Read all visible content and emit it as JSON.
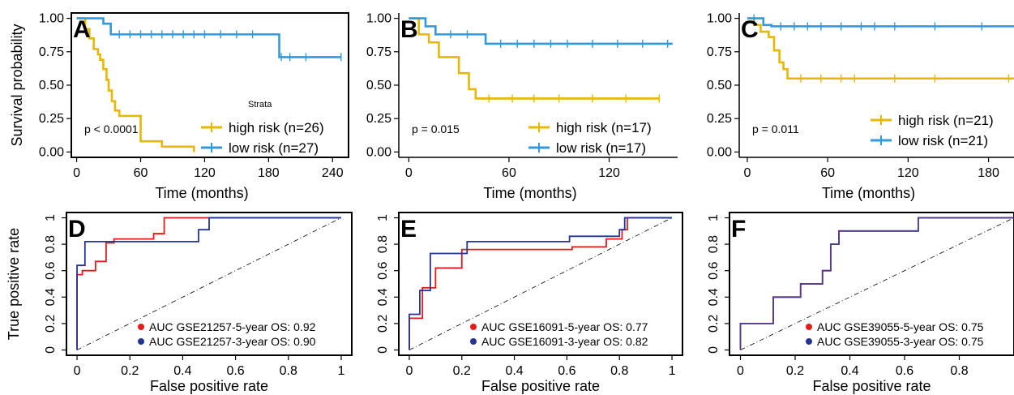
{
  "chart_data": [
    {
      "type": "line",
      "panel": "A",
      "ylabel": "Survival probability",
      "xlabel": "Time (months)",
      "xticks": [
        0,
        60,
        120,
        180,
        240
      ],
      "yticks": [
        "0.00",
        "0.25",
        "0.50",
        "0.75",
        "1.00"
      ],
      "xlim": [
        -5,
        255
      ],
      "ylim": [
        -0.04,
        1.04
      ],
      "annotation": "p < 0.0001",
      "legend_title": "Strata",
      "series": [
        {
          "name": "high risk (n=26)",
          "color": "#E6B800",
          "x": [
            0,
            8,
            12,
            16,
            20,
            22,
            25,
            28,
            30,
            33,
            36,
            40,
            45,
            60,
            80,
            110
          ],
          "y": [
            1.0,
            0.92,
            0.85,
            0.77,
            0.73,
            0.69,
            0.62,
            0.54,
            0.46,
            0.38,
            0.31,
            0.27,
            0.27,
            0.08,
            0.04,
            0.0
          ],
          "censor": []
        },
        {
          "name": "low risk (n=27)",
          "color": "#3399DD",
          "x": [
            0,
            25,
            32,
            185,
            190,
            248
          ],
          "y": [
            1.0,
            0.96,
            0.88,
            0.88,
            0.71,
            0.71
          ],
          "censor": [
            [
              40,
              0.88
            ],
            [
              50,
              0.88
            ],
            [
              60,
              0.88
            ],
            [
              70,
              0.88
            ],
            [
              80,
              0.88
            ],
            [
              90,
              0.88
            ],
            [
              100,
              0.88
            ],
            [
              110,
              0.88
            ],
            [
              120,
              0.88
            ],
            [
              135,
              0.88
            ],
            [
              150,
              0.88
            ],
            [
              165,
              0.88
            ],
            [
              192,
              0.71
            ],
            [
              200,
              0.71
            ],
            [
              215,
              0.71
            ],
            [
              248,
              0.71
            ]
          ]
        }
      ]
    },
    {
      "type": "line",
      "panel": "B",
      "xlabel": "Time (months)",
      "xticks": [
        0,
        60,
        120
      ],
      "yticks": [
        "0.00",
        "0.25",
        "0.50",
        "0.75",
        "1.00"
      ],
      "xlim": [
        -6,
        161
      ],
      "ylim": [
        -0.04,
        1.04
      ],
      "annotation": "p = 0.015",
      "series": [
        {
          "name": "high risk (n=17)",
          "color": "#E6B800",
          "x": [
            0,
            6,
            12,
            18,
            30,
            36,
            40,
            150
          ],
          "y": [
            1.0,
            0.88,
            0.82,
            0.71,
            0.59,
            0.47,
            0.4,
            0.4
          ],
          "censor": [
            [
              48,
              0.4
            ],
            [
              62,
              0.4
            ],
            [
              75,
              0.4
            ],
            [
              90,
              0.4
            ],
            [
              110,
              0.4
            ],
            [
              130,
              0.4
            ],
            [
              150,
              0.4
            ]
          ]
        },
        {
          "name": "low risk (n=17)",
          "color": "#3399DD",
          "x": [
            0,
            10,
            16,
            46,
            158
          ],
          "y": [
            1.0,
            0.94,
            0.88,
            0.81,
            0.81
          ],
          "censor": [
            [
              25,
              0.88
            ],
            [
              35,
              0.88
            ],
            [
              55,
              0.81
            ],
            [
              65,
              0.81
            ],
            [
              75,
              0.81
            ],
            [
              85,
              0.81
            ],
            [
              95,
              0.81
            ],
            [
              110,
              0.81
            ],
            [
              125,
              0.81
            ],
            [
              140,
              0.81
            ],
            [
              155,
              0.81
            ]
          ]
        }
      ]
    },
    {
      "type": "line",
      "panel": "C",
      "xlabel": "Time (months)",
      "xticks": [
        0,
        60,
        120,
        180
      ],
      "yticks": [
        "0.00",
        "0.25",
        "0.50",
        "0.75",
        "1.00"
      ],
      "xlim": [
        -6,
        199
      ],
      "ylim": [
        -0.04,
        1.04
      ],
      "annotation": "p = 0.011",
      "series": [
        {
          "name": "high risk (n=21)",
          "color": "#E6B800",
          "x": [
            0,
            5,
            10,
            16,
            20,
            24,
            27,
            30,
            199
          ],
          "y": [
            1.0,
            0.95,
            0.9,
            0.86,
            0.76,
            0.67,
            0.62,
            0.55,
            0.55
          ],
          "censor": [
            [
              40,
              0.55
            ],
            [
              55,
              0.55
            ],
            [
              70,
              0.55
            ],
            [
              80,
              0.55
            ],
            [
              110,
              0.55
            ],
            [
              140,
              0.55
            ],
            [
              195,
              0.55
            ]
          ]
        },
        {
          "name": "low risk (n=21)",
          "color": "#3399DD",
          "x": [
            0,
            12,
            18,
            199
          ],
          "y": [
            1.0,
            0.95,
            0.94,
            0.94
          ],
          "censor": [
            [
              5,
              1.0
            ],
            [
              25,
              0.94
            ],
            [
              35,
              0.94
            ],
            [
              45,
              0.94
            ],
            [
              55,
              0.94
            ],
            [
              70,
              0.94
            ],
            [
              85,
              0.94
            ],
            [
              95,
              0.94
            ],
            [
              110,
              0.94
            ],
            [
              140,
              0.94
            ],
            [
              175,
              0.94
            ]
          ]
        }
      ]
    },
    {
      "type": "line",
      "panel": "D",
      "ylabel": "True positive rate",
      "xlabel": "False positive rate",
      "xticks": [
        "0",
        "0.2",
        "0.4",
        "0.6",
        "0.8",
        "1"
      ],
      "yticks": [
        "0",
        "0.2",
        "0.4",
        "0.6",
        "0.8",
        "1"
      ],
      "xlim": [
        -0.04,
        1.04
      ],
      "ylim": [
        -0.04,
        1.04
      ],
      "series": [
        {
          "name": "AUC GSE21257-5-year OS: 0.92",
          "color": "#E41A1C",
          "x": [
            0,
            0,
            0.02,
            0.02,
            0.07,
            0.07,
            0.11,
            0.11,
            0.14,
            0.14,
            0.29,
            0.29,
            0.33,
            0.33,
            1.0
          ],
          "y": [
            0,
            0.57,
            0.57,
            0.6,
            0.6,
            0.67,
            0.67,
            0.81,
            0.81,
            0.84,
            0.84,
            0.88,
            0.88,
            1.0,
            1.0
          ]
        },
        {
          "name": "AUC GSE21257-3-year OS: 0.90",
          "color": "#253494",
          "x": [
            0,
            0,
            0.01,
            0.01,
            0.03,
            0.03,
            0.46,
            0.46,
            0.5,
            0.5,
            1.0
          ],
          "y": [
            0,
            0.64,
            0.64,
            0.64,
            0.64,
            0.82,
            0.82,
            0.91,
            0.91,
            1.0,
            1.0
          ]
        }
      ]
    },
    {
      "type": "line",
      "panel": "E",
      "xlabel": "False positive rate",
      "xticks": [
        "0",
        "0.2",
        "0.4",
        "0.6",
        "0.8",
        "1"
      ],
      "yticks": [
        "0",
        "0.2",
        "0.4",
        "0.6",
        "0.8",
        "1"
      ],
      "xlim": [
        -0.04,
        1.04
      ],
      "ylim": [
        -0.04,
        1.04
      ],
      "series": [
        {
          "name": "AUC GSE16091-5-year OS: 0.77",
          "color": "#E41A1C",
          "x": [
            0,
            0,
            0.05,
            0.05,
            0.1,
            0.1,
            0.2,
            0.2,
            0.62,
            0.62,
            0.75,
            0.75,
            0.81,
            0.81,
            0.83,
            0.83,
            1.0
          ],
          "y": [
            0,
            0.24,
            0.24,
            0.47,
            0.47,
            0.62,
            0.62,
            0.76,
            0.76,
            0.78,
            0.78,
            0.84,
            0.84,
            0.91,
            0.91,
            1.0,
            1.0
          ]
        },
        {
          "name": "AUC GSE16091-3-year OS: 0.82",
          "color": "#253494",
          "x": [
            0,
            0,
            0.04,
            0.04,
            0.08,
            0.08,
            0.17,
            0.17,
            0.22,
            0.22,
            0.61,
            0.61,
            0.8,
            0.8,
            0.82,
            0.82,
            1.0
          ],
          "y": [
            0,
            0.27,
            0.27,
            0.45,
            0.45,
            0.73,
            0.73,
            0.73,
            0.73,
            0.82,
            0.82,
            0.86,
            0.86,
            0.91,
            0.91,
            1.0,
            1.0
          ]
        }
      ]
    },
    {
      "type": "line",
      "panel": "F",
      "xlabel": "False positive rate",
      "xticks": [
        "0",
        "0.2",
        "0.4",
        "0.6",
        "0.8"
      ],
      "yticks": [
        "0",
        "0.2",
        "0.4",
        "0.6",
        "0.8",
        "1"
      ],
      "xlim": [
        -0.04,
        1.0
      ],
      "ylim": [
        -0.04,
        1.04
      ],
      "series": [
        {
          "name": "AUC GSE39055-5-year OS: 0.75",
          "color": "#E41A1C",
          "x": [
            0,
            0,
            0.12,
            0.12,
            0.22,
            0.22,
            0.3,
            0.3,
            0.33,
            0.33,
            0.36,
            0.36,
            0.65,
            0.65,
            1.0
          ],
          "y": [
            0,
            0.2,
            0.2,
            0.4,
            0.4,
            0.5,
            0.5,
            0.6,
            0.6,
            0.8,
            0.8,
            0.9,
            0.9,
            1.0,
            1.0
          ]
        },
        {
          "name": "AUC GSE39055-3-year OS: 0.75",
          "color": "#4B3B8F",
          "x": [
            0,
            0,
            0.12,
            0.12,
            0.22,
            0.22,
            0.3,
            0.3,
            0.33,
            0.33,
            0.36,
            0.36,
            0.65,
            0.65,
            1.0
          ],
          "y": [
            0,
            0.2,
            0.2,
            0.4,
            0.4,
            0.5,
            0.5,
            0.6,
            0.6,
            0.8,
            0.8,
            0.9,
            0.9,
            1.0,
            1.0
          ]
        }
      ]
    }
  ]
}
